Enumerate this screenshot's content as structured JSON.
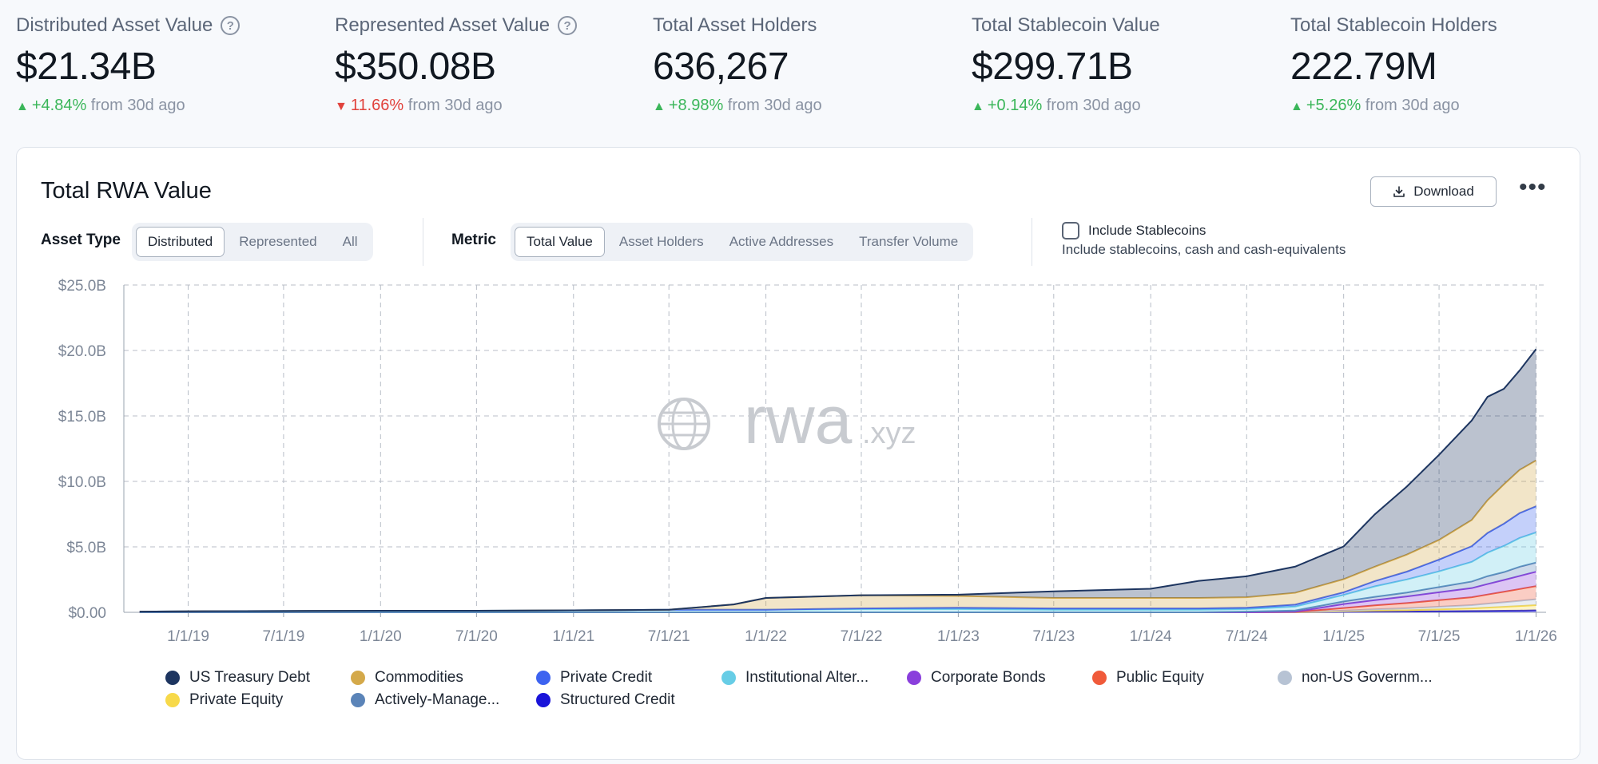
{
  "stats": [
    {
      "label": "Distributed Asset Value",
      "help": true,
      "value": "$21.34B",
      "direction": "up",
      "change": "+4.84%",
      "from": "from 30d ago"
    },
    {
      "label": "Represented Asset Value",
      "help": true,
      "value": "$350.08B",
      "direction": "down",
      "change": "11.66%",
      "from": "from 30d ago"
    },
    {
      "label": "Total Asset Holders",
      "help": false,
      "value": "636,267",
      "direction": "up",
      "change": "+8.98%",
      "from": "from 30d ago"
    },
    {
      "label": "Total Stablecoin Value",
      "help": false,
      "value": "$299.71B",
      "direction": "up",
      "change": "+0.14%",
      "from": "from 30d ago"
    },
    {
      "label": "Total Stablecoin Holders",
      "help": false,
      "value": "222.79M",
      "direction": "up",
      "change": "+5.26%",
      "from": "from 30d ago"
    }
  ],
  "card": {
    "title": "Total RWA Value",
    "download_label": "Download",
    "more_label": "•••",
    "asset_type": {
      "label": "Asset Type",
      "options": [
        "Distributed",
        "Represented",
        "All"
      ],
      "selected": "Distributed"
    },
    "metric": {
      "label": "Metric",
      "options": [
        "Total Value",
        "Asset Holders",
        "Active Addresses",
        "Transfer Volume"
      ],
      "selected": "Total Value"
    },
    "stablecoins": {
      "label": "Include Stablecoins",
      "description": "Include stablecoins, cash and cash-equivalents",
      "checked": false
    },
    "watermark": {
      "brand": "rwa",
      "suffix": ".xyz"
    }
  },
  "chart_data": {
    "type": "area",
    "stacked": true,
    "y_tick_labels": [
      "$0.00",
      "$5.0B",
      "$10.0B",
      "$15.0B",
      "$20.0B",
      "$25.0B"
    ],
    "ylim": [
      0,
      25
    ],
    "y_unit": "$B",
    "x_tick_labels": [
      "1/1/19",
      "7/1/19",
      "1/1/20",
      "7/1/20",
      "1/1/21",
      "7/1/21",
      "1/1/22",
      "7/1/22",
      "1/1/23",
      "7/1/23",
      "1/1/24",
      "7/1/24",
      "1/1/25",
      "7/1/25",
      "1/1/26"
    ],
    "x": [
      "2018-10",
      "2019-01",
      "2019-07",
      "2020-01",
      "2020-07",
      "2021-01",
      "2021-07",
      "2021-11",
      "2022-01",
      "2022-07",
      "2023-01",
      "2023-07",
      "2024-01",
      "2024-04",
      "2024-07",
      "2024-10",
      "2025-01",
      "2025-03",
      "2025-05",
      "2025-07",
      "2025-09",
      "2025-10",
      "2025-11",
      "2025-12",
      "2026-01"
    ],
    "grid": true,
    "legend_position": "bottom",
    "series": [
      {
        "name": "Structured Credit",
        "color": "#1a14d9",
        "values": [
          0,
          0,
          0,
          0,
          0,
          0,
          0,
          0,
          0,
          0,
          0,
          0,
          0,
          0,
          0,
          0,
          0.03,
          0.05,
          0.06,
          0.08,
          0.1,
          0.11,
          0.12,
          0.13,
          0.15
        ]
      },
      {
        "name": "Private Equity",
        "color": "#f7d94a",
        "values": [
          0,
          0,
          0,
          0,
          0,
          0,
          0,
          0,
          0,
          0,
          0,
          0,
          0,
          0,
          0,
          0,
          0.05,
          0.08,
          0.1,
          0.15,
          0.2,
          0.25,
          0.3,
          0.35,
          0.4
        ]
      },
      {
        "name": "non-US Government Debt",
        "color": "#b7c3d4",
        "values": [
          0,
          0,
          0,
          0,
          0,
          0,
          0,
          0,
          0,
          0,
          0,
          0,
          0,
          0,
          0,
          0.02,
          0.05,
          0.1,
          0.15,
          0.2,
          0.25,
          0.3,
          0.35,
          0.4,
          0.45
        ]
      },
      {
        "name": "Public Equity",
        "color": "#f05a3a",
        "values": [
          0,
          0,
          0,
          0,
          0,
          0,
          0,
          0,
          0,
          0,
          0,
          0,
          0,
          0,
          0,
          0,
          0.2,
          0.3,
          0.4,
          0.5,
          0.6,
          0.7,
          0.8,
          0.9,
          1.0
        ]
      },
      {
        "name": "Corporate Bonds",
        "color": "#8a3fdc",
        "values": [
          0,
          0,
          0,
          0,
          0,
          0,
          0,
          0,
          0,
          0,
          0,
          0,
          0,
          0,
          0,
          0.02,
          0.3,
          0.4,
          0.5,
          0.6,
          0.7,
          0.8,
          0.9,
          1.0,
          1.1
        ]
      },
      {
        "name": "Actively-Managed Strategies",
        "color": "#5b84b8",
        "values": [
          0,
          0,
          0,
          0,
          0,
          0,
          0,
          0,
          0,
          0,
          0,
          0,
          0,
          0,
          0.05,
          0.1,
          0.2,
          0.25,
          0.3,
          0.4,
          0.5,
          0.6,
          0.6,
          0.7,
          0.7
        ]
      },
      {
        "name": "Institutional Alternative Funds",
        "color": "#67cde6",
        "values": [
          0.05,
          0.08,
          0.1,
          0.12,
          0.12,
          0.15,
          0.2,
          0.2,
          0.2,
          0.25,
          0.25,
          0.2,
          0.2,
          0.2,
          0.2,
          0.3,
          0.5,
          0.8,
          1.0,
          1.2,
          1.5,
          1.8,
          2.0,
          2.2,
          2.3
        ]
      },
      {
        "name": "Private Credit",
        "color": "#3d63f0",
        "values": [
          0,
          0,
          0,
          0,
          0,
          0,
          0,
          0,
          0,
          0.05,
          0.1,
          0.1,
          0.1,
          0.1,
          0.1,
          0.15,
          0.2,
          0.4,
          0.6,
          0.9,
          1.2,
          1.5,
          1.7,
          1.9,
          2.0
        ]
      },
      {
        "name": "Commodities",
        "color": "#d4a94a",
        "values": [
          0,
          0,
          0,
          0,
          0,
          0,
          0,
          0.4,
          0.9,
          1.0,
          0.9,
          0.8,
          0.8,
          0.8,
          0.8,
          0.9,
          1.0,
          1.1,
          1.3,
          1.5,
          2.0,
          2.5,
          3.0,
          3.3,
          3.5
        ]
      },
      {
        "name": "US Treasury Debt",
        "color": "#1d3560",
        "values": [
          0,
          0,
          0,
          0,
          0,
          0,
          0,
          0,
          0,
          0,
          0.1,
          0.5,
          0.7,
          1.3,
          1.6,
          2.0,
          2.5,
          4.0,
          5.2,
          6.5,
          7.6,
          7.9,
          7.3,
          7.6,
          8.5
        ]
      }
    ]
  },
  "legend": [
    {
      "label": "US Treasury Debt",
      "color": "#1d3560"
    },
    {
      "label": "Commodities",
      "color": "#d4a94a"
    },
    {
      "label": "Private Credit",
      "color": "#3d63f0"
    },
    {
      "label": "Institutional Alter...",
      "color": "#67cde6"
    },
    {
      "label": "Corporate Bonds",
      "color": "#8a3fdc"
    },
    {
      "label": "Public Equity",
      "color": "#f05a3a"
    },
    {
      "label": "non-US Governm...",
      "color": "#b7c3d4"
    },
    {
      "label": "Private Equity",
      "color": "#f7d94a"
    },
    {
      "label": "Actively-Manage...",
      "color": "#5b84b8"
    },
    {
      "label": "Structured Credit",
      "color": "#1a14d9"
    }
  ]
}
